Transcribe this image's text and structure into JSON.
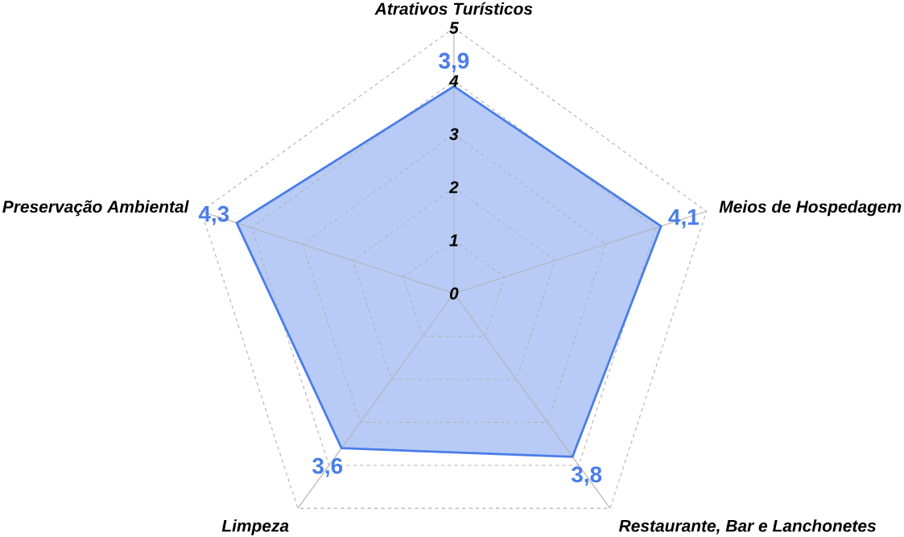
{
  "chart_data": {
    "type": "radar",
    "categories": [
      "Atrativos Turísticos",
      "Meios de Hospedagem",
      "Restaurante, Bar e Lanchonetes",
      "Limpeza",
      "Preservação Ambiental"
    ],
    "series": [
      {
        "color": "#4a7de8",
        "values": [
          3.9,
          4.1,
          3.8,
          3.6,
          4.3
        ],
        "value_labels": [
          "3,9",
          "4,1",
          "3,8",
          "3,6",
          "4,3"
        ]
      }
    ],
    "ylim": [
      0,
      5
    ],
    "yticks": [
      0,
      1,
      2,
      3,
      4,
      5
    ],
    "grid": true
  }
}
